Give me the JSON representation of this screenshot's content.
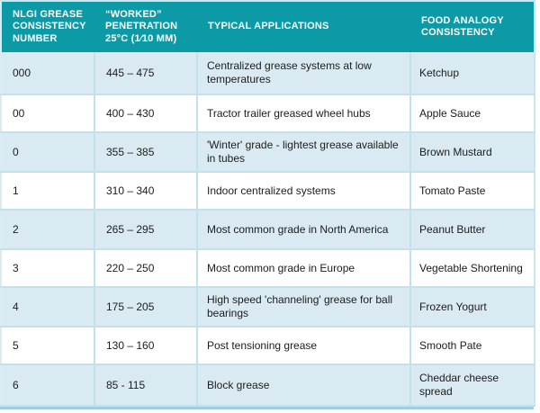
{
  "colors": {
    "header_background": "#0d9aa7",
    "header_text": "#ffffff",
    "shaded_row_background": "#d9eaf2",
    "row_background": "#ffffff",
    "border": "#c3e1eb",
    "outer_bottom_border": "#9ecfdc",
    "cell_text": "#1c1c1c"
  },
  "table": {
    "columns": [
      {
        "key": "nlgi",
        "label": "NLGI GREASE\nCONSISTENCY\nNUMBER"
      },
      {
        "key": "penetration",
        "label": "“WORKED”\nPENETRATION\n25°C (1⁄10 MM)"
      },
      {
        "key": "application",
        "label": "TYPICAL  APPLICATIONS"
      },
      {
        "key": "food",
        "label": "FOOD ANALOGY\nCONSISTENCY"
      }
    ],
    "rows": [
      {
        "nlgi": "000",
        "penetration": "445 – 475",
        "application": "Centralized grease systems at low temperatures",
        "food": "Ketchup",
        "shaded": true
      },
      {
        "nlgi": "00",
        "penetration": "400 – 430",
        "application": "Tractor trailer greased wheel hubs",
        "food": "Apple Sauce",
        "shaded": false
      },
      {
        "nlgi": "0",
        "penetration": "355 – 385",
        "application": "'Winter' grade - lightest grease available in tubes",
        "food": "Brown Mustard",
        "shaded": true
      },
      {
        "nlgi": "1",
        "penetration": "310 – 340",
        "application": "Indoor centralized systems",
        "food": "Tomato Paste",
        "shaded": false
      },
      {
        "nlgi": "2",
        "penetration": "265 – 295",
        "application": "Most common grade in North America",
        "food": "Peanut Butter",
        "shaded": true
      },
      {
        "nlgi": "3",
        "penetration": "220 – 250",
        "application": "Most common grade in Europe",
        "food": "Vegetable Shortening",
        "shaded": false
      },
      {
        "nlgi": "4",
        "penetration": "175 – 205",
        "application": "High speed 'channeling' grease for ball bearings",
        "food": "Frozen Yogurt",
        "shaded": true
      },
      {
        "nlgi": "5",
        "penetration": "130 – 160",
        "application": "Post tensioning grease",
        "food": "Smooth Pate",
        "shaded": false
      },
      {
        "nlgi": "6",
        "penetration": "85 - 115",
        "application": "Block grease",
        "food": "Cheddar cheese spread",
        "shaded": true
      }
    ]
  }
}
